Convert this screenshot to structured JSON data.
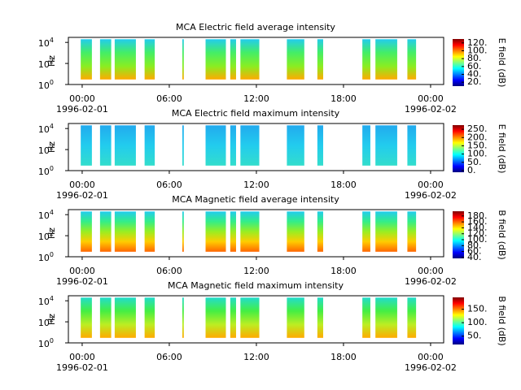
{
  "chart_data": [
    {
      "type": "spectrogram",
      "title": "MCA  Electric field average intensity",
      "ylabel": "Hz",
      "colorbar_label": "E field (dB)",
      "yscale": "log",
      "ylim": [
        1,
        30000
      ],
      "yticks": [
        {
          "value": 1,
          "label": "10",
          "exponent": "0"
        },
        {
          "value": 100,
          "label": "10",
          "exponent": "2"
        },
        {
          "value": 10000,
          "label": "10",
          "exponent": "4"
        }
      ],
      "xlim": [
        -0.95,
        24.9
      ],
      "xticks": [
        {
          "value": 0,
          "label": "00:00"
        },
        {
          "value": 6,
          "label": "06:00"
        },
        {
          "value": 12,
          "label": "12:00"
        },
        {
          "value": 18,
          "label": "18:00"
        },
        {
          "value": 24,
          "label": "00:00"
        }
      ],
      "xtick_dates": [
        {
          "value": 0,
          "label": "1996-02-01"
        },
        {
          "value": 24,
          "label": "1996-02-02"
        }
      ],
      "freq_range": [
        3,
        20000
      ],
      "segments": [
        [
          -0.1,
          0.67
        ],
        [
          1.23,
          2.0
        ],
        [
          2.24,
          3.7
        ],
        [
          4.3,
          5.0
        ],
        [
          6.9,
          7.0
        ],
        [
          8.5,
          9.9
        ],
        [
          10.2,
          10.6
        ],
        [
          10.9,
          12.2
        ],
        [
          14.1,
          15.3
        ],
        [
          16.2,
          16.6
        ],
        [
          19.3,
          19.85
        ],
        [
          20.2,
          21.7
        ],
        [
          22.4,
          23.0
        ]
      ],
      "colors": [
        "#22ccee",
        "#44ee66",
        "#88ee22",
        "#ffaa00"
      ],
      "colormap": "jet",
      "zlim": [
        10,
        130
      ],
      "zticks": [
        {
          "value": 20,
          "label": "20."
        },
        {
          "value": 40,
          "label": "40."
        },
        {
          "value": 60,
          "label": "60."
        },
        {
          "value": 80,
          "label": "80."
        },
        {
          "value": 100,
          "label": "100."
        },
        {
          "value": 120,
          "label": "120."
        }
      ]
    },
    {
      "type": "spectrogram",
      "title": "MCA  Electric field maximum intensity",
      "ylabel": "Hz",
      "colorbar_label": "E field (dB)",
      "yscale": "log",
      "ylim": [
        1,
        30000
      ],
      "yticks": [
        {
          "value": 1,
          "label": "10",
          "exponent": "0"
        },
        {
          "value": 100,
          "label": "10",
          "exponent": "2"
        },
        {
          "value": 10000,
          "label": "10",
          "exponent": "4"
        }
      ],
      "xlim": [
        -0.95,
        24.9
      ],
      "xticks": [
        {
          "value": 0,
          "label": "00:00"
        },
        {
          "value": 6,
          "label": "06:00"
        },
        {
          "value": 12,
          "label": "12:00"
        },
        {
          "value": 18,
          "label": "18:00"
        },
        {
          "value": 24,
          "label": "00:00"
        }
      ],
      "xtick_dates": [
        {
          "value": 0,
          "label": "1996-02-01"
        },
        {
          "value": 24,
          "label": "1996-02-02"
        }
      ],
      "freq_range": [
        3,
        20000
      ],
      "segments": [
        [
          -0.1,
          0.67
        ],
        [
          1.23,
          2.0
        ],
        [
          2.24,
          3.7
        ],
        [
          4.3,
          5.0
        ],
        [
          6.9,
          7.0
        ],
        [
          8.5,
          9.9
        ],
        [
          10.2,
          10.6
        ],
        [
          10.9,
          12.2
        ],
        [
          14.1,
          15.3
        ],
        [
          16.2,
          16.6
        ],
        [
          19.3,
          19.85
        ],
        [
          20.2,
          21.7
        ],
        [
          22.4,
          23.0
        ]
      ],
      "colors": [
        "#22aaee",
        "#22ccee",
        "#33ddcc"
      ],
      "colormap": "jet",
      "zlim": [
        -10,
        275
      ],
      "zticks": [
        {
          "value": 0,
          "label": "0."
        },
        {
          "value": 50,
          "label": "50."
        },
        {
          "value": 100,
          "label": "100."
        },
        {
          "value": 150,
          "label": "150."
        },
        {
          "value": 200,
          "label": "200."
        },
        {
          "value": 250,
          "label": "250."
        }
      ]
    },
    {
      "type": "spectrogram",
      "title": "MCA  Magnetic field average intensity",
      "ylabel": "Hz",
      "colorbar_label": "B field (dB)",
      "yscale": "log",
      "ylim": [
        1,
        30000
      ],
      "yticks": [
        {
          "value": 1,
          "label": "10",
          "exponent": "0"
        },
        {
          "value": 100,
          "label": "10",
          "exponent": "2"
        },
        {
          "value": 10000,
          "label": "10",
          "exponent": "4"
        }
      ],
      "xlim": [
        -0.95,
        24.9
      ],
      "xticks": [
        {
          "value": 0,
          "label": "00:00"
        },
        {
          "value": 6,
          "label": "06:00"
        },
        {
          "value": 12,
          "label": "12:00"
        },
        {
          "value": 18,
          "label": "18:00"
        },
        {
          "value": 24,
          "label": "00:00"
        }
      ],
      "xtick_dates": [
        {
          "value": 0,
          "label": "1996-02-01"
        },
        {
          "value": 24,
          "label": "1996-02-02"
        }
      ],
      "freq_range": [
        3,
        20000
      ],
      "segments": [
        [
          -0.1,
          0.67
        ],
        [
          1.23,
          2.0
        ],
        [
          2.24,
          3.7
        ],
        [
          4.3,
          5.0
        ],
        [
          6.9,
          7.0
        ],
        [
          8.5,
          9.9
        ],
        [
          10.2,
          10.6
        ],
        [
          10.9,
          12.2
        ],
        [
          14.1,
          15.3
        ],
        [
          16.2,
          16.6
        ],
        [
          19.3,
          19.85
        ],
        [
          20.2,
          21.7
        ],
        [
          22.4,
          23.0
        ]
      ],
      "colors": [
        "#22ccee",
        "#33ee88",
        "#99ee22",
        "#ffcc00",
        "#ff6600"
      ],
      "colormap": "jet",
      "zlim": [
        37,
        196
      ],
      "zticks": [
        {
          "value": 40,
          "label": "40."
        },
        {
          "value": 60,
          "label": "60."
        },
        {
          "value": 80,
          "label": "80."
        },
        {
          "value": 100,
          "label": "100."
        },
        {
          "value": 120,
          "label": "120."
        },
        {
          "value": 140,
          "label": "140."
        },
        {
          "value": 160,
          "label": "160."
        },
        {
          "value": 180,
          "label": "180."
        }
      ]
    },
    {
      "type": "spectrogram",
      "title": "MCA  Magnetic field maximum intensity",
      "ylabel": "Hz",
      "colorbar_label": "B field (dB)",
      "yscale": "log",
      "ylim": [
        1,
        30000
      ],
      "yticks": [
        {
          "value": 1,
          "label": "10",
          "exponent": "0"
        },
        {
          "value": 100,
          "label": "10",
          "exponent": "2"
        },
        {
          "value": 10000,
          "label": "10",
          "exponent": "4"
        }
      ],
      "xlim": [
        -0.95,
        24.9
      ],
      "xticks": [
        {
          "value": 0,
          "label": "00:00"
        },
        {
          "value": 6,
          "label": "06:00"
        },
        {
          "value": 12,
          "label": "12:00"
        },
        {
          "value": 18,
          "label": "18:00"
        },
        {
          "value": 24,
          "label": "00:00"
        }
      ],
      "xtick_dates": [
        {
          "value": 0,
          "label": "1996-02-01"
        },
        {
          "value": 24,
          "label": "1996-02-02"
        }
      ],
      "freq_range": [
        3,
        20000
      ],
      "segments": [
        [
          -0.1,
          0.67
        ],
        [
          1.23,
          2.0
        ],
        [
          2.24,
          3.7
        ],
        [
          4.3,
          5.0
        ],
        [
          6.9,
          7.0
        ],
        [
          8.5,
          9.9
        ],
        [
          10.2,
          10.6
        ],
        [
          10.9,
          12.2
        ],
        [
          14.1,
          15.3
        ],
        [
          16.2,
          16.6
        ],
        [
          19.3,
          19.85
        ],
        [
          20.2,
          21.7
        ],
        [
          22.4,
          23.0
        ]
      ],
      "colors": [
        "#22ddcc",
        "#44ee44",
        "#bbee22",
        "#ffaa00"
      ],
      "colormap": "jet",
      "zlim": [
        19,
        194
      ],
      "zticks": [
        {
          "value": 50,
          "label": "50."
        },
        {
          "value": 100,
          "label": "100."
        },
        {
          "value": 150,
          "label": "150."
        }
      ]
    }
  ]
}
